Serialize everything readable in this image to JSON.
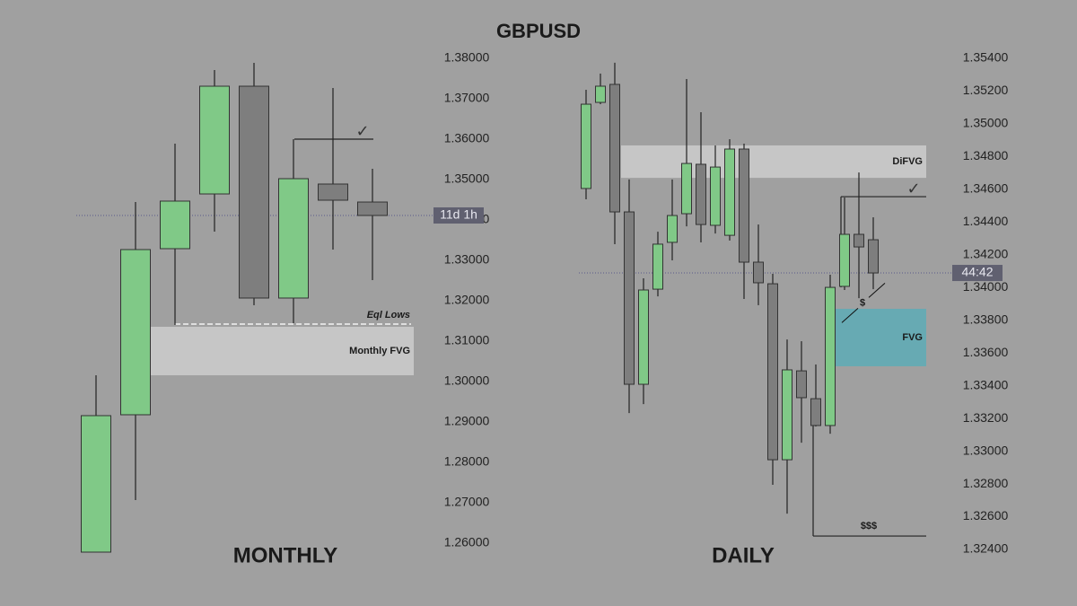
{
  "title": "GBPUSD",
  "chart_data": [
    {
      "type": "candlestick",
      "title": "MONTHLY",
      "up_color": "#80c987",
      "down_color": "#7e7e7e",
      "ylim": [
        1.26,
        1.38
      ],
      "yticks": [
        {
          "value": 1.38,
          "label": "1.38000"
        },
        {
          "value": 1.37,
          "label": "1.37000"
        },
        {
          "value": 1.36,
          "label": "1.36000"
        },
        {
          "value": 1.35,
          "label": "1.35000"
        },
        {
          "value": 1.34,
          "label": "1.34000"
        },
        {
          "value": 1.33,
          "label": "1.33000"
        },
        {
          "value": 1.32,
          "label": "1.32000"
        },
        {
          "value": 1.31,
          "label": "1.31000"
        },
        {
          "value": 1.3,
          "label": "1.30000"
        },
        {
          "value": 1.29,
          "label": "1.29000"
        },
        {
          "value": 1.28,
          "label": "1.28000"
        },
        {
          "value": 1.27,
          "label": "1.27000"
        },
        {
          "value": 1.26,
          "label": "1.26000"
        }
      ],
      "open": [
        1.25778,
        1.29178,
        1.33289,
        1.34644,
        1.37311,
        1.32067,
        1.34889,
        1.34444
      ],
      "high": [
        1.30156,
        1.34444,
        1.35889,
        1.37711,
        1.37889,
        1.36,
        1.37267,
        1.35267
      ],
      "low": [
        1.25778,
        1.27067,
        1.314,
        1.33711,
        1.31889,
        1.31444,
        1.33267,
        1.32511
      ],
      "close": [
        1.29156,
        1.33267,
        1.34467,
        1.37311,
        1.32067,
        1.35022,
        1.34489,
        1.34111
      ],
      "current_price": {
        "value": 1.34111,
        "label": "11d 1h"
      },
      "annotations": [
        {
          "kind": "line",
          "y": 1.36,
          "label": "✓"
        },
        {
          "kind": "zone",
          "y_range": [
            1.31356,
            1.30156
          ],
          "label": "Monthly FVG"
        },
        {
          "kind": "dashed_line",
          "y": 1.31422,
          "label": "Eql Lows"
        }
      ]
    },
    {
      "type": "candlestick",
      "title": "DAILY",
      "up_color": "#80c987",
      "down_color": "#7e7e7e",
      "ylim": [
        1.324,
        1.354
      ],
      "yticks": [
        {
          "value": 1.354,
          "label": "1.35400"
        },
        {
          "value": 1.352,
          "label": "1.35200"
        },
        {
          "value": 1.35,
          "label": "1.35000"
        },
        {
          "value": 1.348,
          "label": "1.34800"
        },
        {
          "value": 1.346,
          "label": "1.34600"
        },
        {
          "value": 1.344,
          "label": "1.34400"
        },
        {
          "value": 1.342,
          "label": "1.34200"
        },
        {
          "value": 1.34,
          "label": "1.34000"
        },
        {
          "value": 1.338,
          "label": "1.33800"
        },
        {
          "value": 1.336,
          "label": "1.33600"
        },
        {
          "value": 1.334,
          "label": "1.33400"
        },
        {
          "value": 1.332,
          "label": "1.33200"
        },
        {
          "value": 1.33,
          "label": "1.33000"
        },
        {
          "value": 1.328,
          "label": "1.32800"
        },
        {
          "value": 1.326,
          "label": "1.32600"
        },
        {
          "value": 1.324,
          "label": "1.32400"
        }
      ],
      "open": [
        1.34605,
        1.35131,
        1.35241,
        1.34462,
        1.33409,
        1.3399,
        1.34276,
        1.34451,
        1.34753,
        1.3438,
        1.34319,
        1.34846,
        1.34155,
        1.34023,
        1.32948,
        1.33491,
        1.33321,
        1.33157,
        1.34007,
        1.34325,
        1.34292
      ],
      "high": [
        1.35208,
        1.35307,
        1.35373,
        1.3466,
        1.34056,
        1.34341,
        1.3466,
        1.35274,
        1.35071,
        1.34868,
        1.34906,
        1.34879,
        1.34385,
        1.34084,
        1.33683,
        1.33672,
        1.3353,
        1.34078,
        1.3455,
        1.34703,
        1.34429
      ],
      "low": [
        1.34539,
        1.3512,
        1.34265,
        1.33233,
        1.33288,
        1.33946,
        1.34166,
        1.34374,
        1.34276,
        1.3433,
        1.34287,
        1.3393,
        1.33892,
        1.32795,
        1.32619,
        1.33052,
        1.33151,
        1.33107,
        1.33985,
        1.33935,
        1.3399
      ],
      "close": [
        1.3512,
        1.3523,
        1.34462,
        1.33409,
        1.33985,
        1.34265,
        1.3444,
        1.34758,
        1.34385,
        1.34736,
        1.34846,
        1.34155,
        1.34029,
        1.32948,
        1.33497,
        1.33327,
        1.33157,
        1.34001,
        1.34325,
        1.34248,
        1.34089
      ],
      "current_price": {
        "value": 1.34089,
        "label": "44:42"
      },
      "annotations": [
        {
          "kind": "zone",
          "y_range": [
            1.34868,
            1.3467
          ],
          "label": "DiFVG"
        },
        {
          "kind": "teal_zone",
          "y_range": [
            1.3387,
            1.33519
          ],
          "label": "FVG"
        },
        {
          "kind": "line",
          "y": 1.34555,
          "label": "✓"
        },
        {
          "kind": "line",
          "y": 1.32482,
          "label": "$$$"
        },
        {
          "kind": "sweep",
          "y": 1.33906,
          "label": "$"
        }
      ]
    }
  ]
}
